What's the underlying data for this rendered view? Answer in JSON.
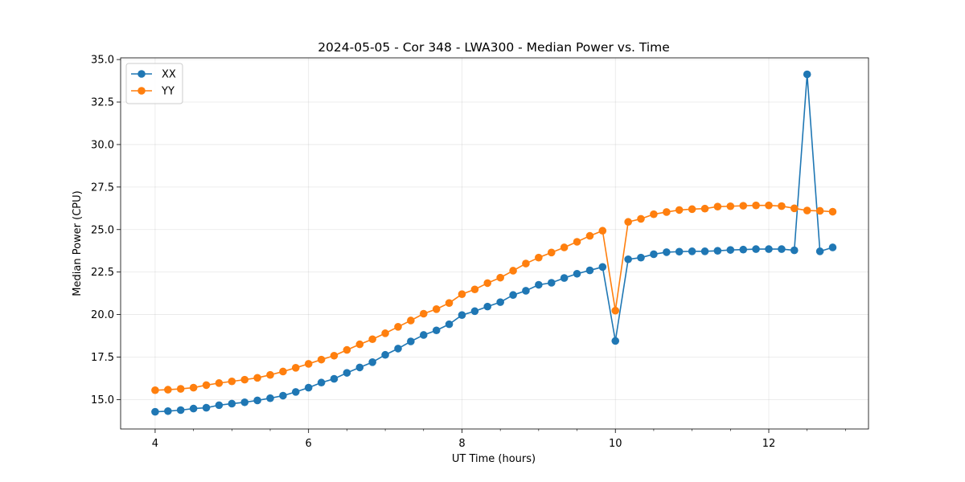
{
  "chart_data": {
    "type": "line",
    "title": "2024-05-05 - Cor 348 - LWA300 - Median Power vs. Time",
    "xlabel": "UT Time (hours)",
    "ylabel": "Median Power (CPU)",
    "xlim": [
      3.55,
      13.3
    ],
    "ylim": [
      13.27,
      35.1
    ],
    "xticks": [
      4,
      6,
      8,
      10,
      12
    ],
    "xtick_labels": [
      "4",
      "6",
      "8",
      "10",
      "12"
    ],
    "yticks": [
      15.0,
      17.5,
      20.0,
      22.5,
      25.0,
      27.5,
      30.0,
      32.5,
      35.0
    ],
    "ytick_labels": [
      "15.0",
      "17.5",
      "20.0",
      "22.5",
      "25.0",
      "27.5",
      "30.0",
      "32.5",
      "35.0"
    ],
    "grid": true,
    "legend_position": "top-left",
    "x": [
      4.0,
      4.167,
      4.333,
      4.5,
      4.667,
      4.833,
      5.0,
      5.167,
      5.333,
      5.5,
      5.667,
      5.833,
      6.0,
      6.167,
      6.333,
      6.5,
      6.667,
      6.833,
      7.0,
      7.167,
      7.333,
      7.5,
      7.667,
      7.833,
      8.0,
      8.167,
      8.333,
      8.5,
      8.667,
      8.833,
      9.0,
      9.167,
      9.333,
      9.5,
      9.667,
      9.833,
      10.0,
      10.167,
      10.333,
      10.5,
      10.667,
      10.833,
      11.0,
      11.167,
      11.333,
      11.5,
      11.667,
      11.833,
      12.0,
      12.167,
      12.333,
      12.5,
      12.667,
      12.833
    ],
    "series": [
      {
        "name": "XX",
        "color": "#1f77b4",
        "values": [
          14.28,
          14.32,
          14.38,
          14.47,
          14.52,
          14.67,
          14.76,
          14.84,
          14.95,
          15.08,
          15.23,
          15.45,
          15.7,
          16.0,
          16.22,
          16.57,
          16.89,
          17.2,
          17.63,
          18.0,
          18.42,
          18.8,
          19.07,
          19.43,
          19.97,
          20.2,
          20.47,
          20.73,
          21.15,
          21.4,
          21.75,
          21.87,
          22.15,
          22.4,
          22.6,
          22.8,
          18.45,
          23.25,
          23.35,
          23.55,
          23.67,
          23.7,
          23.72,
          23.72,
          23.75,
          23.8,
          23.82,
          23.85,
          23.85,
          23.85,
          23.78,
          34.13,
          23.72,
          23.95
        ]
      },
      {
        "name": "YY",
        "color": "#ff7f0e",
        "values": [
          15.55,
          15.58,
          15.63,
          15.7,
          15.85,
          15.97,
          16.07,
          16.17,
          16.28,
          16.45,
          16.65,
          16.87,
          17.1,
          17.35,
          17.58,
          17.92,
          18.25,
          18.55,
          18.9,
          19.28,
          19.65,
          20.05,
          20.32,
          20.68,
          21.2,
          21.48,
          21.85,
          22.17,
          22.58,
          23.0,
          23.35,
          23.65,
          23.95,
          24.28,
          24.63,
          24.93,
          20.23,
          25.45,
          25.63,
          25.9,
          26.03,
          26.15,
          26.2,
          26.23,
          26.35,
          26.37,
          26.4,
          26.42,
          26.42,
          26.38,
          26.25,
          26.12,
          26.1,
          26.05
        ]
      }
    ]
  }
}
